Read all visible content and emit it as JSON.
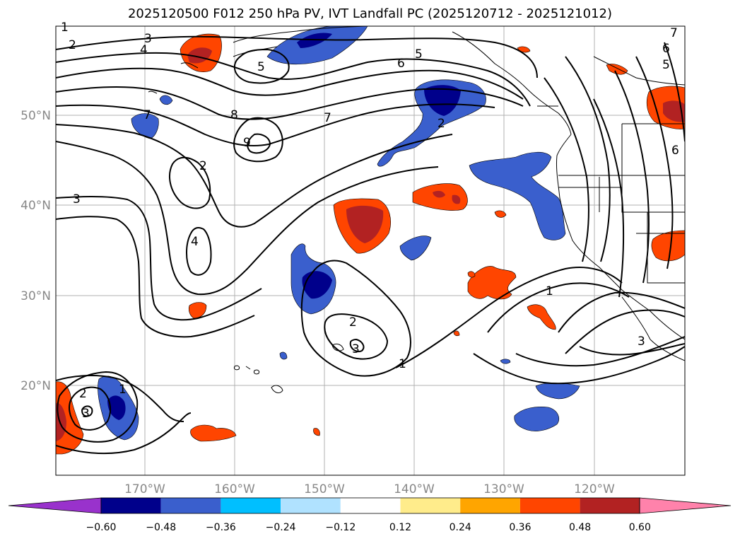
{
  "title": "2025120500 F012 250 hPa PV, IVT Landfall PC (2025120712 - 2025121012)",
  "lat_labels": [
    "50°N",
    "40°N",
    "30°N",
    "20°N"
  ],
  "lon_labels": [
    "170°W",
    "160°W",
    "150°W",
    "140°W",
    "130°W",
    "120°W"
  ],
  "colorbar": {
    "ticks": [
      "−0.60",
      "−0.48",
      "−0.36",
      "−0.24",
      "−0.12",
      "0.12",
      "0.24",
      "0.36",
      "0.48",
      "0.60"
    ],
    "colors": [
      "#9932cc",
      "#00008b",
      "#3a5fcd",
      "#00bfff",
      "#b0e2ff",
      "#ffffff",
      "#ffec8b",
      "#ffa500",
      "#ff4500",
      "#b22222",
      "#ff82ab"
    ]
  },
  "pv_contour_labels": [
    "1",
    "2",
    "3",
    "4",
    "5",
    "6",
    "7",
    "8",
    "9",
    "2",
    "3",
    "4",
    "5",
    "6",
    "7",
    "2",
    "1",
    "2",
    "3",
    "1",
    "3",
    "2",
    "3",
    "1",
    "5",
    "6",
    "7"
  ]
}
